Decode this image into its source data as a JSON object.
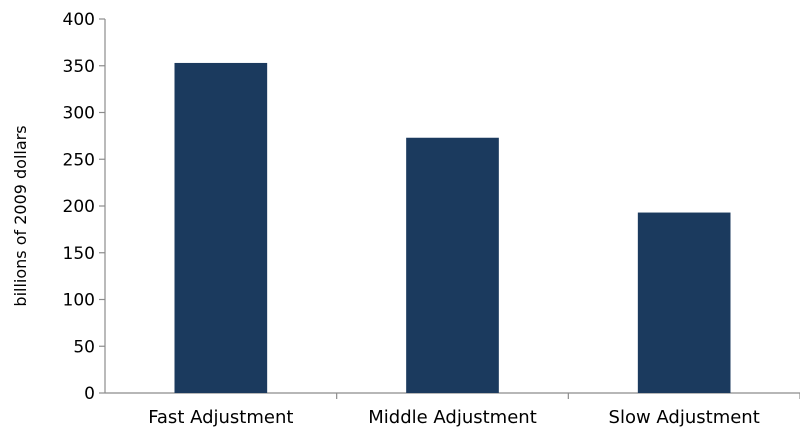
{
  "chart_data": {
    "type": "bar",
    "categories": [
      "Fast Adjustment",
      "Middle Adjustment",
      "Slow Adjustment"
    ],
    "values": [
      353,
      273,
      193
    ],
    "title": "",
    "xlabel": "",
    "ylabel": "billions of 2009 dollars",
    "ylim": [
      0,
      400
    ],
    "yticks": [
      "0",
      "50",
      "100",
      "150",
      "200",
      "250",
      "300",
      "350",
      "400"
    ],
    "grid": false,
    "legend": "none",
    "bar_color": "#1b3a5e"
  }
}
